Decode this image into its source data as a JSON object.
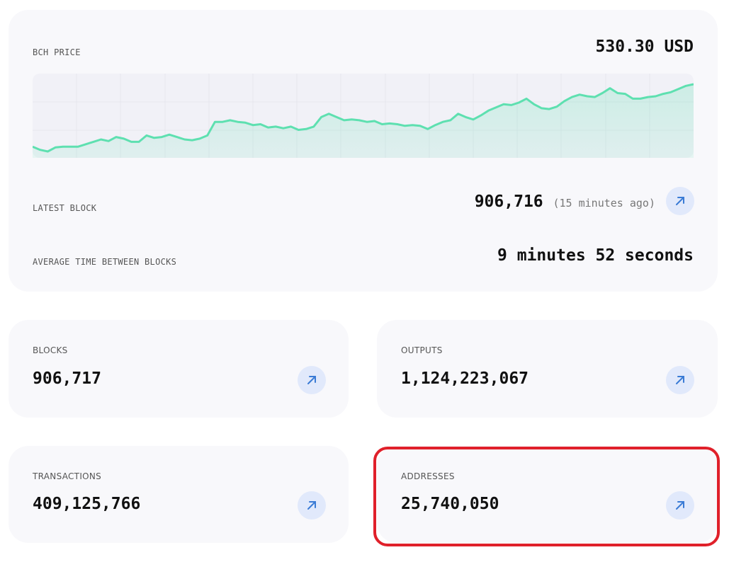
{
  "chart_data": {
    "type": "line",
    "title": "BCH PRICE",
    "values": [
      14,
      10,
      8,
      13,
      14,
      14,
      14,
      17,
      20,
      23,
      21,
      26,
      24,
      20,
      20,
      28,
      25,
      26,
      29,
      26,
      23,
      22,
      24,
      28,
      45,
      45,
      47,
      45,
      44,
      41,
      42,
      38,
      39,
      37,
      39,
      35,
      36,
      39,
      51,
      55,
      51,
      47,
      48,
      47,
      45,
      46,
      42,
      43,
      42,
      40,
      41,
      40,
      36,
      41,
      45,
      47,
      55,
      51,
      48,
      53,
      59,
      63,
      67,
      66,
      69,
      74,
      67,
      62,
      61,
      64,
      71,
      76,
      79,
      77,
      76,
      81,
      87,
      81,
      80,
      74,
      74,
      76,
      77,
      80,
      82,
      86,
      90,
      92
    ],
    "ylim": [
      0,
      100
    ],
    "color": "#5ee0b0"
  },
  "price": "530.30 USD",
  "latest_block": {
    "label": "LATEST BLOCK",
    "value": "906,716",
    "age": "(15 minutes ago)"
  },
  "average_time": {
    "label": "AVERAGE TIME BETWEEN BLOCKS",
    "value": "9 minutes 52 seconds"
  },
  "cards": [
    {
      "label": "BLOCKS",
      "value": "906,717"
    },
    {
      "label": "OUTPUTS",
      "value": "1,124,223,067"
    },
    {
      "label": "TRANSACTIONS",
      "value": "409,125,766"
    },
    {
      "label": "ADDRESSES",
      "value": "25,740,050"
    }
  ]
}
